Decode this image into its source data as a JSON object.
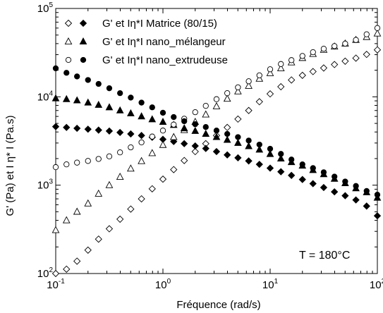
{
  "chart_data": {
    "type": "scatter",
    "title": "",
    "xlabel": "Fréquence (rad/s)",
    "ylabel": "G' (Pa) et I η* I (Pa.s)",
    "xscale": "log",
    "yscale": "log",
    "xlim": [
      0.1,
      100
    ],
    "ylim": [
      100,
      100000
    ],
    "grid": false,
    "legend_position": "top-center",
    "x_tick_labels": [
      {
        "base": "10",
        "exp": "-1"
      },
      {
        "base": "10",
        "exp": "0"
      },
      {
        "base": "10",
        "exp": "1"
      },
      {
        "base": "10",
        "exp": "2"
      }
    ],
    "y_tick_labels": [
      {
        "base": "10",
        "exp": "2"
      },
      {
        "base": "10",
        "exp": "3"
      },
      {
        "base": "10",
        "exp": "4"
      },
      {
        "base": "10",
        "exp": "5"
      }
    ],
    "annotation": "T = 180°C",
    "x": [
      0.1,
      0.126,
      0.158,
      0.2,
      0.251,
      0.316,
      0.398,
      0.501,
      0.631,
      0.794,
      1.0,
      1.26,
      1.58,
      2.0,
      2.51,
      3.16,
      3.98,
      5.01,
      6.31,
      7.94,
      10.0,
      12.6,
      15.8,
      20.0,
      25.1,
      31.6,
      39.8,
      50.1,
      63.1,
      79.4,
      100.0
    ],
    "series": [
      {
        "group": "Matrice (80/15)",
        "quantity": "G'",
        "marker": "diamond-open",
        "values": [
          100,
          112,
          138,
          184,
          245,
          321,
          412,
          536,
          700,
          909,
          1170,
          1500,
          1900,
          2400,
          2950,
          3650,
          4500,
          5600,
          7000,
          8800,
          10800,
          13000,
          15500,
          17500,
          19300,
          21200,
          23200,
          25300,
          27400,
          30200,
          34000
        ]
      },
      {
        "group": "Matrice (80/15)",
        "quantity": "|η*|",
        "marker": "diamond-filled",
        "values": [
          4600,
          4500,
          4400,
          4300,
          4200,
          4100,
          3950,
          3800,
          3650,
          3480,
          3300,
          3120,
          2950,
          2780,
          2600,
          2400,
          2200,
          2040,
          1880,
          1720,
          1560,
          1420,
          1290,
          1160,
          1040,
          940,
          840,
          760,
          680,
          580,
          450
        ]
      },
      {
        "group": "nano_mélangeur",
        "quantity": "G'",
        "marker": "triangle-open",
        "values": [
          310,
          400,
          500,
          620,
          800,
          1000,
          1240,
          1540,
          1870,
          2300,
          2850,
          3500,
          4200,
          5200,
          6300,
          7800,
          9500,
          11500,
          13300,
          16000,
          18500,
          21000,
          24500,
          27500,
          30500,
          34000,
          37000,
          40000,
          44000,
          47500,
          52000
        ]
      },
      {
        "group": "nano_mélangeur",
        "quantity": "|η*|",
        "marker": "triangle-filled",
        "values": [
          9600,
          9400,
          9100,
          8600,
          8100,
          7600,
          7000,
          6500,
          6000,
          5550,
          5200,
          4800,
          4400,
          4100,
          3800,
          3500,
          3250,
          3000,
          2760,
          2520,
          2250,
          2000,
          1820,
          1660,
          1480,
          1330,
          1180,
          1050,
          920,
          830,
          720
        ]
      },
      {
        "group": "nano_extrudeuse",
        "quantity": "G'",
        "marker": "circle-open",
        "values": [
          1600,
          1720,
          1800,
          1880,
          1980,
          2120,
          2350,
          2680,
          3050,
          3550,
          4150,
          4850,
          5650,
          6700,
          7900,
          9400,
          11000,
          12800,
          15000,
          17500,
          20500,
          23500,
          26000,
          29000,
          32000,
          35000,
          37500,
          40000,
          44000,
          51000,
          60000
        ]
      },
      {
        "group": "nano_extrudeuse",
        "quantity": "|η*|",
        "marker": "circle-filled",
        "values": [
          21000,
          18700,
          17000,
          15500,
          14000,
          12500,
          11000,
          9800,
          8600,
          7600,
          6600,
          5900,
          5300,
          4900,
          4550,
          4150,
          3800,
          3500,
          3200,
          2880,
          2580,
          2260,
          1950,
          1720,
          1560,
          1400,
          1250,
          1100,
          980,
          860,
          780
        ]
      }
    ],
    "legend": [
      {
        "label": "G' et Iη*I Matrice (80/15)",
        "open_marker": "diamond-open",
        "filled_marker": "diamond-filled"
      },
      {
        "label": "G' et Iη*I nano_mélangeur",
        "open_marker": "triangle-open",
        "filled_marker": "triangle-filled"
      },
      {
        "label": "G' et Iη*I nano_extrudeuse",
        "open_marker": "circle-open",
        "filled_marker": "circle-filled"
      }
    ]
  }
}
